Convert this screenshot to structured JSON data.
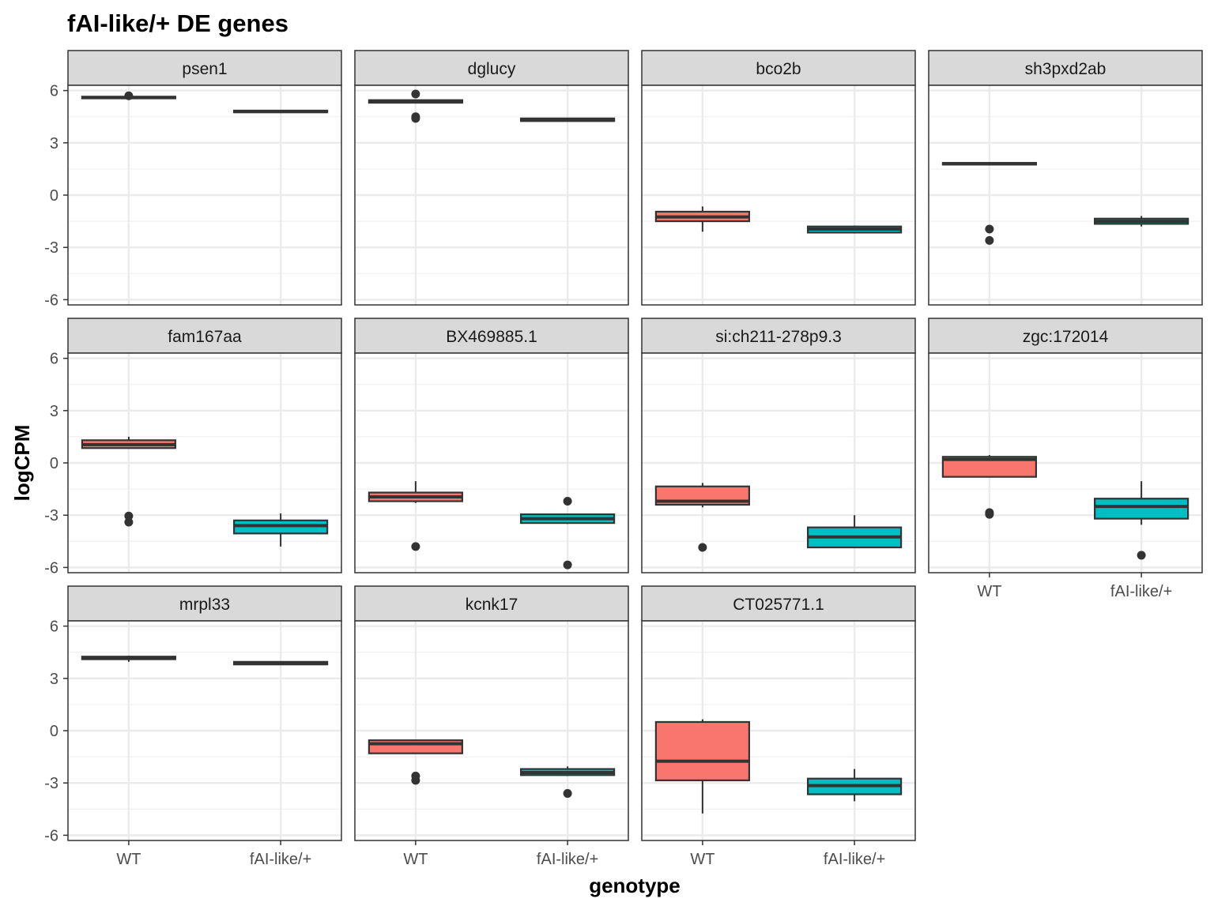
{
  "chart_data": {
    "type": "boxplot",
    "title": "fAI-like/+ DE genes",
    "xlabel": "genotype",
    "ylabel": "logCPM",
    "categories": [
      "WT",
      "fAI-like/+"
    ],
    "ylim": [
      -6.3,
      6.3
    ],
    "yticks": [
      -6,
      -3,
      0,
      3,
      6
    ],
    "ytick_labels": [
      "-6",
      "-3",
      "0",
      "3",
      "6"
    ],
    "grid": true,
    "facet_layout": "4 columns x 3 rows",
    "colors": {
      "WT": "#F8766D",
      "fAI-like/+": "#00BFC4",
      "panel_border": "#333333",
      "strip_fill": "#D9D9D9"
    },
    "panels": [
      {
        "gene": "psen1",
        "boxes": [
          {
            "genotype": "WT",
            "min": 5.55,
            "q1": 5.55,
            "median": 5.6,
            "q3": 5.65,
            "max": 5.7,
            "outliers": [
              5.7
            ]
          },
          {
            "genotype": "fAI-like/+",
            "min": 4.75,
            "q1": 4.75,
            "median": 4.8,
            "q3": 4.85,
            "max": 4.85,
            "outliers": []
          }
        ]
      },
      {
        "gene": "dglucy",
        "boxes": [
          {
            "genotype": "WT",
            "min": 5.3,
            "q1": 5.3,
            "median": 5.35,
            "q3": 5.45,
            "max": 5.45,
            "outliers": [
              5.8,
              4.5,
              4.4
            ]
          },
          {
            "genotype": "fAI-like/+",
            "min": 4.25,
            "q1": 4.25,
            "median": 4.3,
            "q3": 4.4,
            "max": 4.4,
            "outliers": []
          }
        ]
      },
      {
        "gene": "bco2b",
        "boxes": [
          {
            "genotype": "WT",
            "min": -2.1,
            "q1": -1.5,
            "median": -1.25,
            "q3": -0.95,
            "max": -0.65,
            "outliers": []
          },
          {
            "genotype": "fAI-like/+",
            "min": -2.2,
            "q1": -2.15,
            "median": -1.95,
            "q3": -1.8,
            "max": -1.75,
            "outliers": []
          }
        ]
      },
      {
        "gene": "sh3pxd2ab",
        "boxes": [
          {
            "genotype": "WT",
            "min": 1.75,
            "q1": 1.75,
            "median": 1.8,
            "q3": 1.85,
            "max": 1.9,
            "outliers": [
              -1.95,
              -2.6
            ]
          },
          {
            "genotype": "fAI-like/+",
            "min": -1.8,
            "q1": -1.65,
            "median": -1.5,
            "q3": -1.35,
            "max": -1.2,
            "outliers": []
          }
        ]
      },
      {
        "gene": "fam167aa",
        "boxes": [
          {
            "genotype": "WT",
            "min": 0.85,
            "q1": 0.85,
            "median": 1.05,
            "q3": 1.3,
            "max": 1.5,
            "outliers": [
              -3.05,
              -3.4
            ]
          },
          {
            "genotype": "fAI-like/+",
            "min": -4.8,
            "q1": -4.05,
            "median": -3.6,
            "q3": -3.3,
            "max": -2.9,
            "outliers": []
          }
        ]
      },
      {
        "gene": "BX469885.1",
        "boxes": [
          {
            "genotype": "WT",
            "min": -2.3,
            "q1": -2.2,
            "median": -1.95,
            "q3": -1.7,
            "max": -1.05,
            "outliers": [
              -4.8
            ]
          },
          {
            "genotype": "fAI-like/+",
            "min": -3.5,
            "q1": -3.45,
            "median": -3.2,
            "q3": -2.95,
            "max": -2.9,
            "outliers": [
              -2.2,
              -5.85
            ]
          }
        ]
      },
      {
        "gene": "si:ch211-278p9.3",
        "boxes": [
          {
            "genotype": "WT",
            "min": -2.55,
            "q1": -2.4,
            "median": -2.2,
            "q3": -1.35,
            "max": -1.15,
            "outliers": [
              -4.85
            ]
          },
          {
            "genotype": "fAI-like/+",
            "min": -4.85,
            "q1": -4.85,
            "median": -4.25,
            "q3": -3.7,
            "max": -3.0,
            "outliers": []
          }
        ]
      },
      {
        "gene": "zgc:172014",
        "boxes": [
          {
            "genotype": "WT",
            "min": -0.8,
            "q1": -0.8,
            "median": 0.2,
            "q3": 0.35,
            "max": 0.45,
            "outliers": [
              -2.85,
              -2.95
            ]
          },
          {
            "genotype": "fAI-like/+",
            "min": -3.55,
            "q1": -3.2,
            "median": -2.5,
            "q3": -2.05,
            "max": -1.05,
            "outliers": [
              -5.3
            ]
          }
        ]
      },
      {
        "gene": "mrpl33",
        "boxes": [
          {
            "genotype": "WT",
            "min": 3.95,
            "q1": 4.1,
            "median": 4.15,
            "q3": 4.25,
            "max": 4.3,
            "outliers": []
          },
          {
            "genotype": "fAI-like/+",
            "min": 3.8,
            "q1": 3.8,
            "median": 3.9,
            "q3": 3.95,
            "max": 3.95,
            "outliers": []
          }
        ]
      },
      {
        "gene": "kcnk17",
        "boxes": [
          {
            "genotype": "WT",
            "min": -1.3,
            "q1": -1.3,
            "median": -0.75,
            "q3": -0.55,
            "max": -0.5,
            "outliers": [
              -2.6,
              -2.85
            ]
          },
          {
            "genotype": "fAI-like/+",
            "min": -2.6,
            "q1": -2.55,
            "median": -2.4,
            "q3": -2.2,
            "max": -2.05,
            "outliers": [
              -3.6
            ]
          }
        ]
      },
      {
        "gene": "CT025771.1",
        "boxes": [
          {
            "genotype": "WT",
            "min": -4.75,
            "q1": -2.85,
            "median": -1.75,
            "q3": 0.5,
            "max": 0.65,
            "outliers": []
          },
          {
            "genotype": "fAI-like/+",
            "min": -4.05,
            "q1": -3.65,
            "median": -3.15,
            "q3": -2.75,
            "max": -2.2,
            "outliers": []
          }
        ]
      }
    ]
  }
}
